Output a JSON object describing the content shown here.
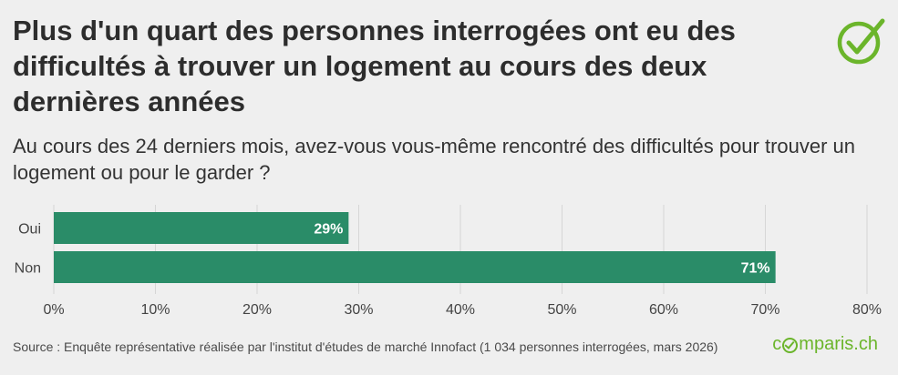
{
  "header": {
    "title": "Plus d'un quart des personnes interrogées ont eu des difficultés à trouver un logement au cours des deux dernières années",
    "subtitle": "Au cours des 24 derniers mois, avez-vous vous-même rencontré des difficultés pour trouver un logement ou pour le garder ?",
    "check_icon": "checkmark-circle-icon"
  },
  "footer": {
    "source": "Source : Enquête représentative réalisée par l'institut d'études de marché Innofact (1 034 personnes interrogées, mars 2026)",
    "logo_pre": "c",
    "logo_post": "mparis.ch"
  },
  "colors": {
    "bar": "#2a8c68",
    "accent": "#6bb52b"
  },
  "chart_data": {
    "type": "bar",
    "orientation": "horizontal",
    "categories": [
      "Oui",
      "Non"
    ],
    "values": [
      29,
      71
    ],
    "value_labels": [
      "29%",
      "71%"
    ],
    "xlim": [
      0,
      80
    ],
    "xticks": [
      0,
      10,
      20,
      30,
      40,
      50,
      60,
      70,
      80
    ],
    "xtick_labels": [
      "0%",
      "10%",
      "20%",
      "30%",
      "40%",
      "50%",
      "60%",
      "70%",
      "80%"
    ],
    "grid": true
  }
}
